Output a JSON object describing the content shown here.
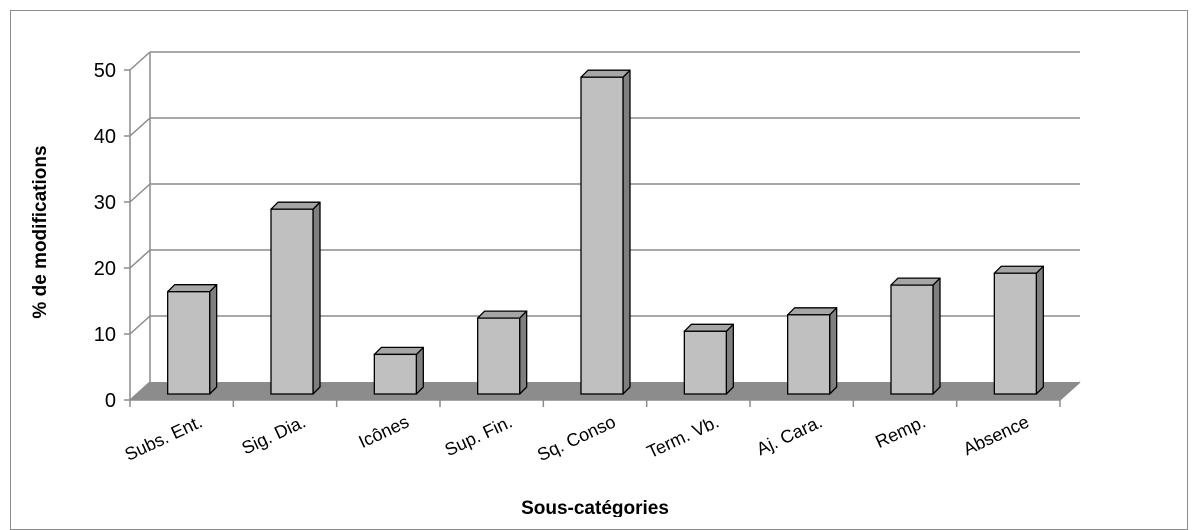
{
  "chart_data": {
    "type": "bar",
    "style": "3d-clustered-column",
    "categories": [
      "Subs. Ent.",
      "Sig. Dia.",
      "Icônes",
      "Sup. Fin.",
      "Sq. Conso",
      "Term. Vb.",
      "Aj. Cara.",
      "Remp.",
      "Absence"
    ],
    "values": [
      15.5,
      28,
      6,
      11.5,
      48,
      9.5,
      12,
      16.5,
      18.3
    ],
    "xlabel": "Sous-catégories",
    "ylabel": "% de modifications",
    "ylim": [
      0,
      50
    ],
    "yticks": [
      "0",
      "10",
      "20",
      "30",
      "40",
      "50"
    ],
    "grid": true,
    "legend": "none",
    "colors": {
      "bar_front": "#c0c0c0",
      "bar_top": "#a6a6a6",
      "bar_side": "#7f7f7f",
      "floor": "#8c8c8c",
      "gridline": "#8c8c8c"
    }
  }
}
